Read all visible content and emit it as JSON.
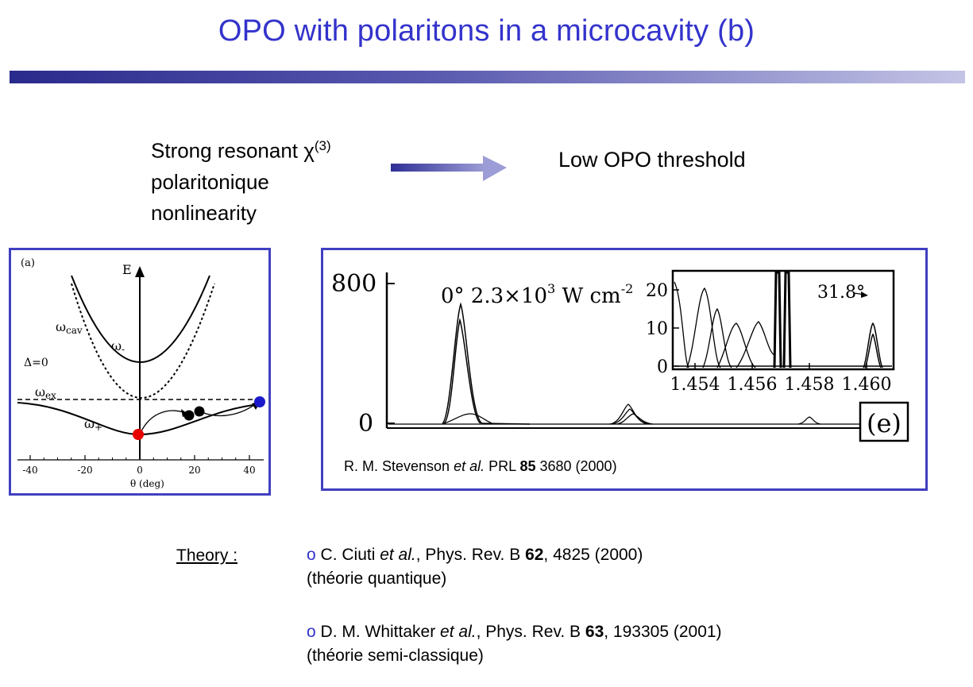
{
  "slide": {
    "title": "OPO with polaritons in a microcavity (b)"
  },
  "claim": {
    "left_line1": "Strong resonant ",
    "chi_symbol": "χ",
    "chi_superscript": "(3)",
    "left_line2": "polaritonique",
    "left_line3": "nonlinearity",
    "right": "Low OPO threshold"
  },
  "figure_a": {
    "panel_label": "(a)",
    "energy_axis_label": "E",
    "cavity_label": "ω",
    "cavity_subscript": "cav",
    "upper_label": "ω",
    "upper_subscript": "-",
    "detuning_label": "Δ=0",
    "exciton_label": "ω",
    "exciton_subscript": "ex",
    "lower_label": "ω",
    "lower_subscript": "+",
    "x_ticks": [
      "-40",
      "-20",
      "0",
      "20",
      "40"
    ],
    "x_axis_label": "θ (deg)",
    "pump_dot_color": "#e60000",
    "idler_dot_color": "#1a1acc"
  },
  "figure_e": {
    "y_ticks_main": [
      "800",
      "0"
    ],
    "peak_annotation_main": "0°  2.3×10",
    "peak_annotation_exp": "3",
    "peak_annotation_units": " W cm",
    "peak_annotation_units_exp": "-2",
    "inset_y_ticks": [
      "20",
      "10",
      "0"
    ],
    "inset_x_ticks": [
      "1.454",
      "1.456",
      "1.458",
      "1.460"
    ],
    "inset_annotation": "31.8°",
    "panel_label": "(e)"
  },
  "caption": {
    "authors": "R. M. Stevenson ",
    "etal": "et al.",
    "journal": " PRL ",
    "volume": "85",
    "rest": " 3680 (2000)"
  },
  "theory": {
    "label": "Theory :",
    "bullet": "o",
    "refs": [
      {
        "authors": " C. Ciuti ",
        "etal": "et al.",
        "journal": ", Phys. Rev. B ",
        "volume": "62",
        "rest": ", 4825 (2000)",
        "note": "(théorie quantique)"
      },
      {
        "authors": " D. M. Whittaker ",
        "etal": "et al.",
        "journal": ", Phys. Rev. B ",
        "volume": "63",
        "rest": ", 193305 (2001)",
        "note": "(théorie semi-classique)"
      }
    ]
  }
}
